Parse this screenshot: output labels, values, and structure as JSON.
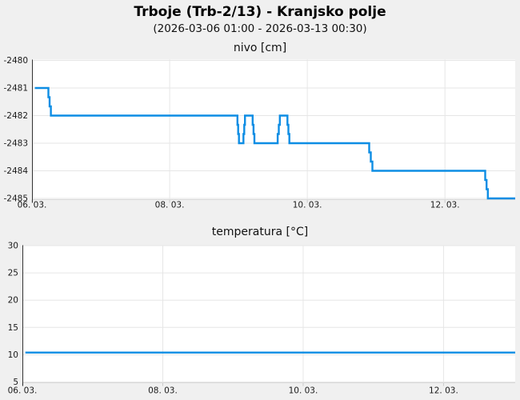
{
  "header": {
    "title": "Trboje (Trb-2/13) - Kranjsko polje",
    "subtitle": "(2026-03-06 01:00 - 2026-03-13 00:30)"
  },
  "colors": {
    "page_background": "#f0f0f0",
    "plot_background": "#ffffff",
    "gridline": "#e6e6e6",
    "axis_line": "#333333",
    "tick_stub": "#c9c9c9",
    "plot_bottom_border": "#d9d9d9",
    "tick_text": "#1a1a1a",
    "series_line": "#0d8de4"
  },
  "chart_data": [
    {
      "id": "nivo",
      "type": "line",
      "title": "nivo [cm]",
      "ylabel": "nivo [cm]",
      "x_unit": "hours since 2026-03-06 00:00",
      "xlim": [
        0,
        168.5
      ],
      "ylim": [
        -2485,
        -2480
      ],
      "yticks": [
        -2480,
        -2481,
        -2482,
        -2483,
        -2484,
        -2485
      ],
      "xticks": [
        {
          "t": 0,
          "label": "06. 03."
        },
        {
          "t": 48,
          "label": "08. 03."
        },
        {
          "t": 96,
          "label": "10. 03."
        },
        {
          "t": 144,
          "label": "12. 03."
        }
      ],
      "grid": true,
      "legend": false,
      "series": [
        {
          "name": "nivo",
          "unit": "cm",
          "points": [
            [
              1.0,
              -2481
            ],
            [
              5.5,
              -2481
            ],
            [
              6.8,
              -2482
            ],
            [
              71.5,
              -2482
            ],
            [
              72.3,
              -2483
            ],
            [
              73.6,
              -2483
            ],
            [
              74.4,
              -2482
            ],
            [
              76.8,
              -2482
            ],
            [
              77.7,
              -2483
            ],
            [
              85.5,
              -2483
            ],
            [
              86.6,
              -2482
            ],
            [
              88.9,
              -2482
            ],
            [
              89.9,
              -2483
            ],
            [
              117.3,
              -2483
            ],
            [
              119.0,
              -2484
            ],
            [
              157.8,
              -2484
            ],
            [
              159.2,
              -2485
            ],
            [
              168.5,
              -2485
            ]
          ]
        }
      ]
    },
    {
      "id": "temperatura",
      "type": "line",
      "title": "temperatura [°C]",
      "ylabel": "temperatura [°C]",
      "x_unit": "hours since 2026-03-06 00:00",
      "xlim": [
        0,
        168.5
      ],
      "ylim": [
        5,
        30
      ],
      "yticks": [
        30,
        25,
        20,
        15,
        10,
        5
      ],
      "xticks": [
        {
          "t": 0,
          "label": "06. 03."
        },
        {
          "t": 48,
          "label": "08. 03."
        },
        {
          "t": 96,
          "label": "10. 03."
        },
        {
          "t": 144,
          "label": "12. 03."
        }
      ],
      "grid": true,
      "legend": false,
      "series": [
        {
          "name": "temperatura",
          "unit": "°C",
          "points": [
            [
              1.0,
              10.4
            ],
            [
              168.5,
              10.4
            ]
          ]
        }
      ]
    }
  ]
}
